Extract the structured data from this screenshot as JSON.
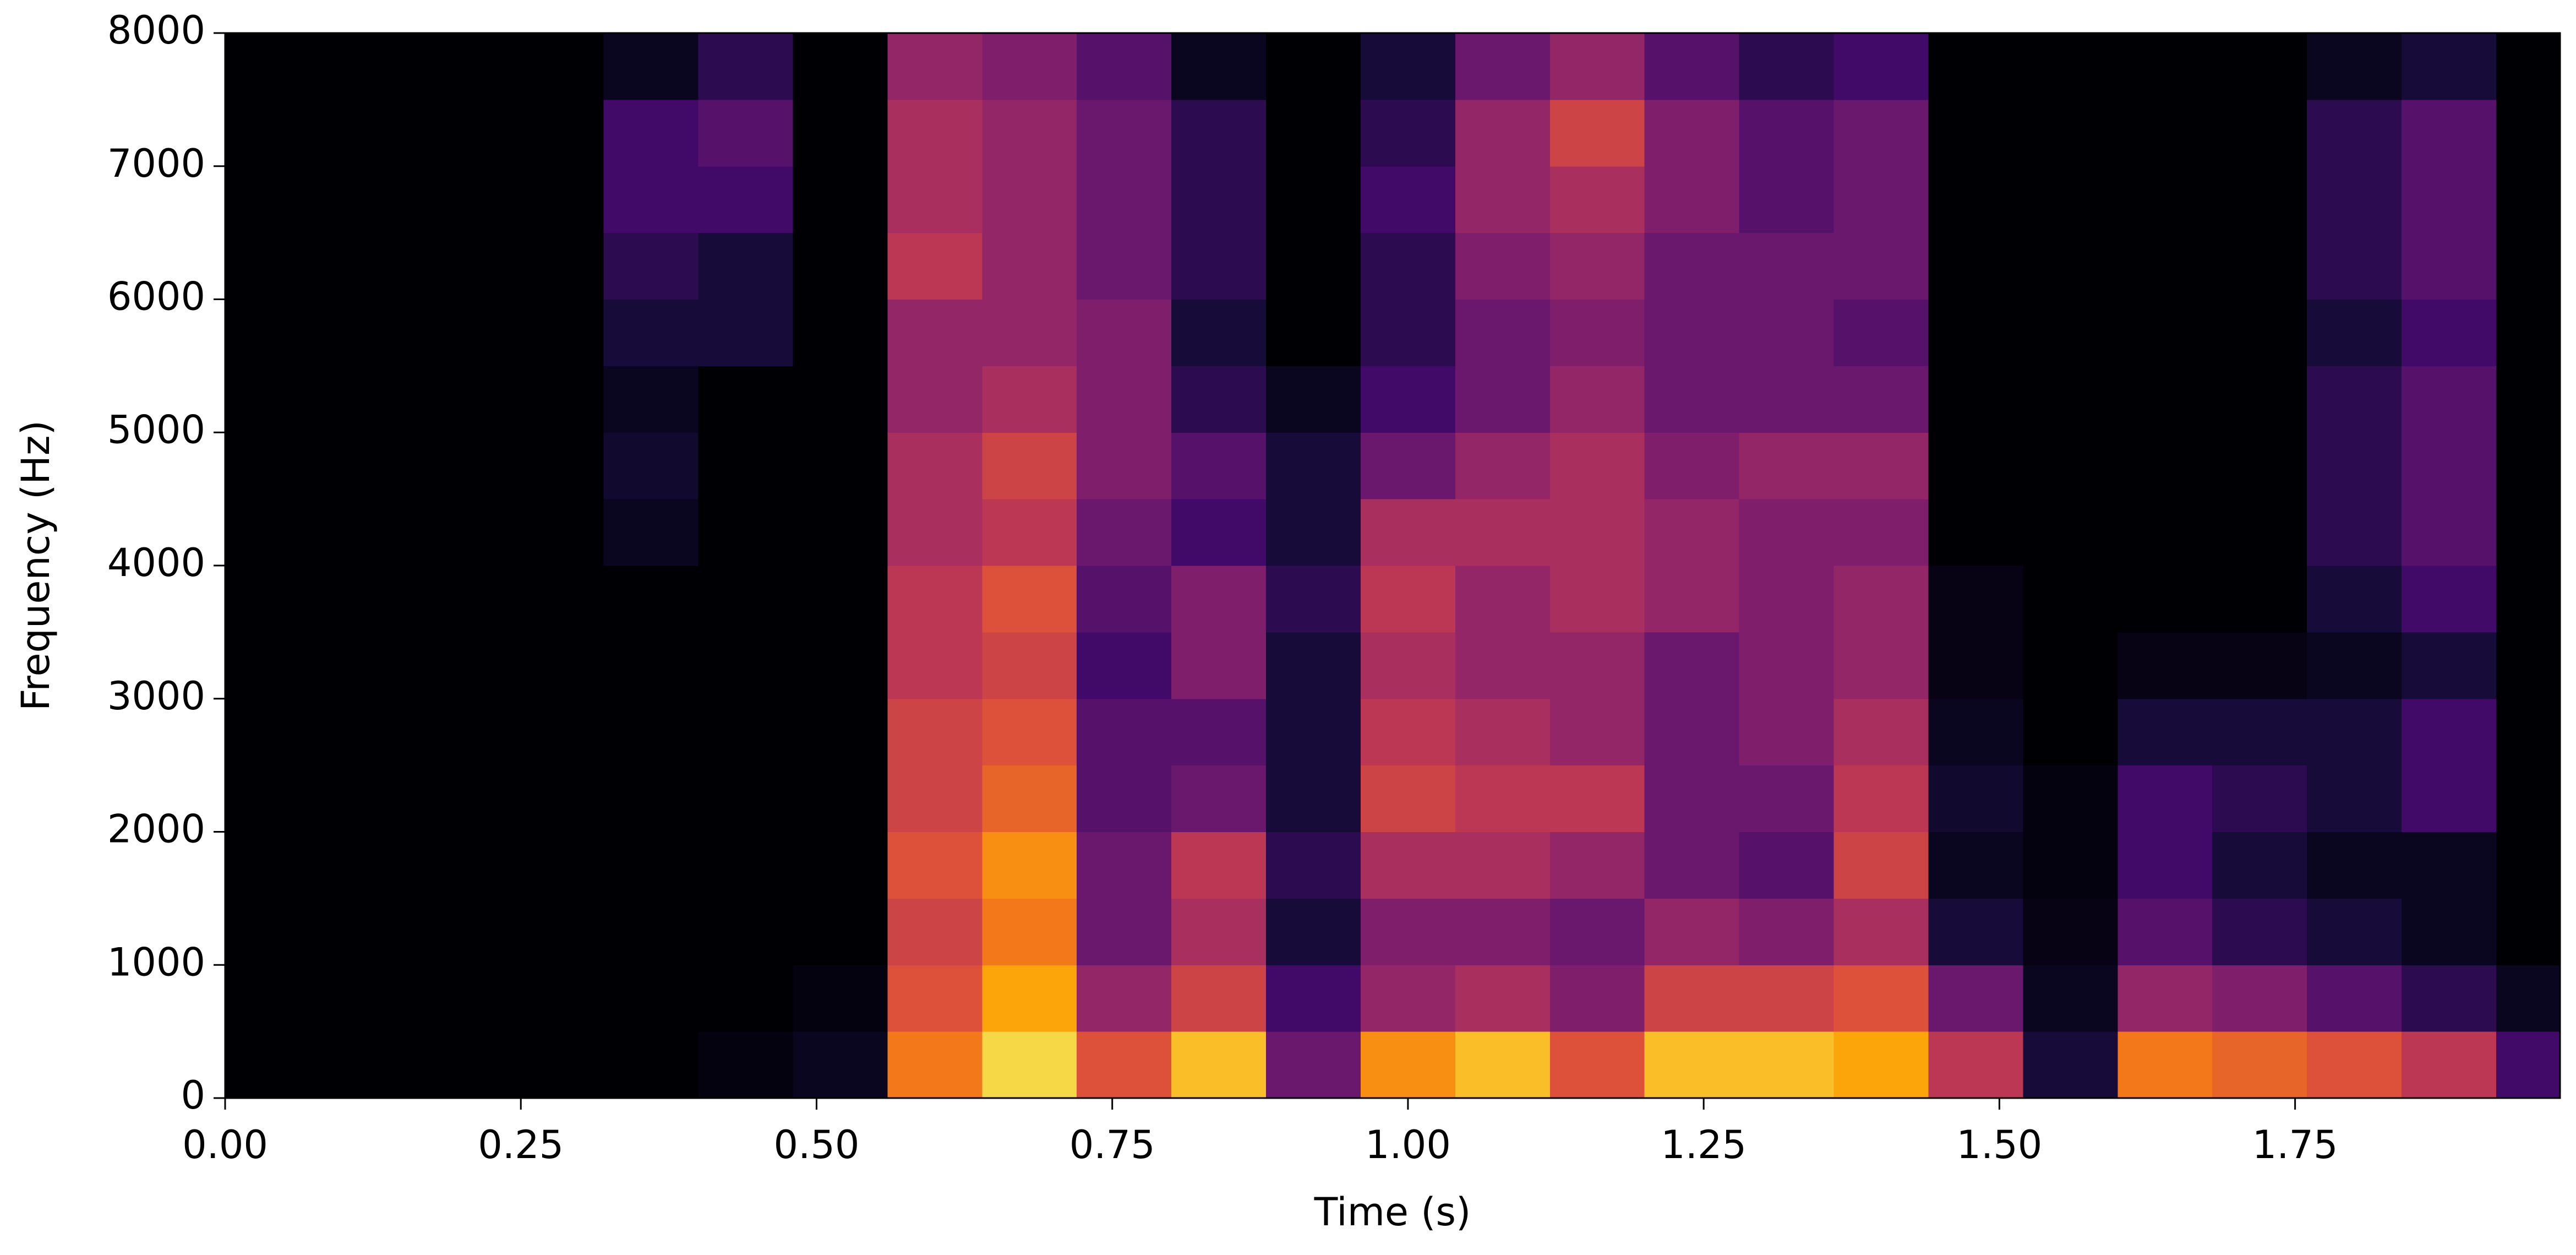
{
  "chart_data": {
    "type": "heatmap",
    "xlabel": "Time (s)",
    "ylabel": "Frequency (Hz)",
    "colormap": "inferno",
    "zlim": [
      0,
      100
    ],
    "xlim": [
      0,
      1.974
    ],
    "ylim": [
      0,
      8000
    ],
    "xticks": [
      {
        "value": 0,
        "label": "0.00"
      },
      {
        "value": 0.25,
        "label": "0.25"
      },
      {
        "value": 0.5,
        "label": "0.50"
      },
      {
        "value": 0.75,
        "label": "0.75"
      },
      {
        "value": 1,
        "label": "1.00"
      },
      {
        "value": 1.25,
        "label": "1.25"
      },
      {
        "value": 1.5,
        "label": "1.50"
      },
      {
        "value": 1.75,
        "label": "1.75"
      }
    ],
    "yticks": [
      0,
      1000,
      2000,
      3000,
      4000,
      5000,
      6000,
      7000,
      8000
    ],
    "xbins": [
      0,
      0.08,
      0.16,
      0.24,
      0.32,
      0.4,
      0.48,
      0.56,
      0.64,
      0.72,
      0.8,
      0.88,
      0.96,
      1.04,
      1.12,
      1.2,
      1.28,
      1.36,
      1.44,
      1.52,
      1.6,
      1.68,
      1.76,
      1.84,
      1.92,
      1.974
    ],
    "ybins": [
      0,
      500,
      1000,
      1500,
      2000,
      2500,
      3000,
      3500,
      4000,
      4500,
      5000,
      5500,
      6000,
      6500,
      7000,
      7500,
      8000
    ],
    "z": [
      [
        0,
        0,
        0,
        0,
        0,
        2,
        5,
        70,
        90,
        60,
        85,
        30,
        75,
        85,
        60,
        85,
        85,
        80,
        50,
        10,
        70,
        65,
        60,
        50,
        20
      ],
      [
        0,
        0,
        0,
        0,
        0,
        0,
        2,
        60,
        80,
        40,
        55,
        20,
        40,
        45,
        35,
        55,
        55,
        60,
        30,
        5,
        40,
        35,
        25,
        15,
        5
      ],
      [
        0,
        0,
        0,
        0,
        0,
        0,
        0,
        55,
        70,
        30,
        45,
        10,
        35,
        35,
        30,
        40,
        35,
        45,
        10,
        3,
        25,
        15,
        10,
        5,
        0
      ],
      [
        0,
        0,
        0,
        0,
        0,
        0,
        0,
        60,
        75,
        30,
        50,
        15,
        45,
        45,
        40,
        30,
        25,
        55,
        5,
        2,
        20,
        10,
        5,
        5,
        0
      ],
      [
        0,
        0,
        0,
        0,
        0,
        0,
        0,
        55,
        65,
        25,
        30,
        10,
        55,
        50,
        50,
        30,
        30,
        50,
        8,
        2,
        20,
        15,
        10,
        20,
        0
      ],
      [
        0,
        0,
        0,
        0,
        0,
        0,
        0,
        55,
        60,
        25,
        25,
        10,
        50,
        45,
        40,
        30,
        35,
        45,
        5,
        0,
        10,
        10,
        10,
        20,
        0
      ],
      [
        0,
        0,
        0,
        0,
        0,
        0,
        0,
        50,
        55,
        20,
        35,
        10,
        45,
        40,
        40,
        30,
        35,
        40,
        3,
        0,
        3,
        3,
        5,
        10,
        0
      ],
      [
        0,
        0,
        0,
        0,
        0,
        0,
        0,
        50,
        60,
        25,
        35,
        15,
        50,
        40,
        45,
        40,
        35,
        40,
        3,
        0,
        0,
        0,
        10,
        20,
        0
      ],
      [
        0,
        0,
        0,
        0,
        5,
        0,
        0,
        45,
        50,
        30,
        20,
        10,
        45,
        45,
        45,
        40,
        35,
        35,
        0,
        0,
        0,
        0,
        15,
        25,
        0
      ],
      [
        0,
        0,
        0,
        0,
        8,
        0,
        0,
        45,
        55,
        35,
        25,
        10,
        30,
        40,
        45,
        35,
        40,
        40,
        0,
        0,
        0,
        0,
        15,
        25,
        0
      ],
      [
        0,
        0,
        0,
        0,
        5,
        0,
        0,
        40,
        45,
        35,
        15,
        5,
        20,
        30,
        40,
        30,
        30,
        30,
        0,
        0,
        0,
        0,
        15,
        25,
        0
      ],
      [
        0,
        0,
        0,
        0,
        10,
        10,
        0,
        40,
        40,
        35,
        10,
        0,
        15,
        30,
        35,
        30,
        30,
        25,
        0,
        0,
        0,
        0,
        10,
        20,
        0
      ],
      [
        0,
        0,
        0,
        0,
        15,
        10,
        0,
        50,
        40,
        30,
        15,
        0,
        15,
        35,
        40,
        30,
        30,
        30,
        0,
        0,
        0,
        0,
        15,
        25,
        0
      ],
      [
        0,
        0,
        0,
        0,
        20,
        20,
        0,
        45,
        40,
        30,
        15,
        0,
        20,
        40,
        45,
        35,
        25,
        30,
        0,
        0,
        0,
        0,
        15,
        25,
        0
      ],
      [
        0,
        0,
        0,
        0,
        20,
        25,
        0,
        45,
        40,
        30,
        15,
        0,
        15,
        40,
        55,
        35,
        25,
        30,
        0,
        0,
        0,
        0,
        15,
        25,
        0
      ],
      [
        0,
        0,
        0,
        0,
        5,
        15,
        0,
        40,
        35,
        25,
        5,
        0,
        10,
        30,
        40,
        25,
        15,
        20,
        0,
        0,
        0,
        0,
        5,
        10,
        0
      ]
    ]
  }
}
